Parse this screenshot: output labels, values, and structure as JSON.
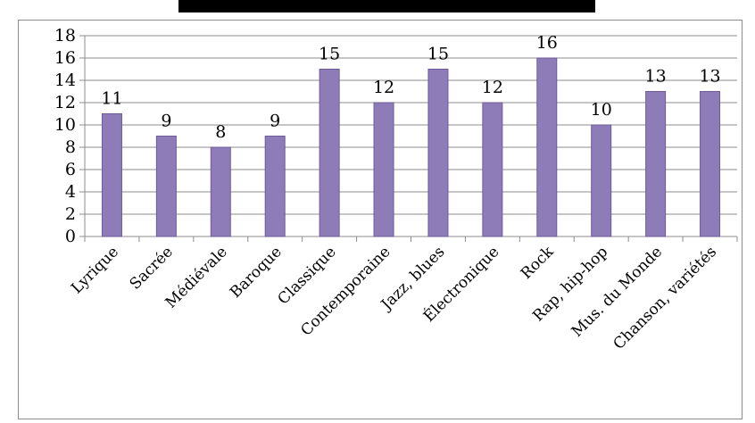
{
  "chart_data": {
    "type": "bar",
    "title": "",
    "xlabel": "",
    "ylabel": "",
    "categories": [
      "Lyrique",
      "Sacrée",
      "Médiévale",
      "Baroque",
      "Classique",
      "Contemporaine",
      "Jazz, blues",
      "Électronique",
      "Rock",
      "Rap, hip-hop",
      "Mus. du Monde",
      "Chanson, variétés"
    ],
    "values": [
      11,
      9,
      8,
      9,
      15,
      12,
      15,
      12,
      16,
      10,
      13,
      13
    ],
    "ylim": [
      0,
      18
    ],
    "yticks": [
      0,
      2,
      4,
      6,
      8,
      10,
      12,
      14,
      16,
      18
    ],
    "grid": true,
    "legend": "none",
    "bar_color": "#8e7cb8",
    "bar_edge_color": "#6d5b98",
    "grid_color": "#8c8c8c"
  }
}
